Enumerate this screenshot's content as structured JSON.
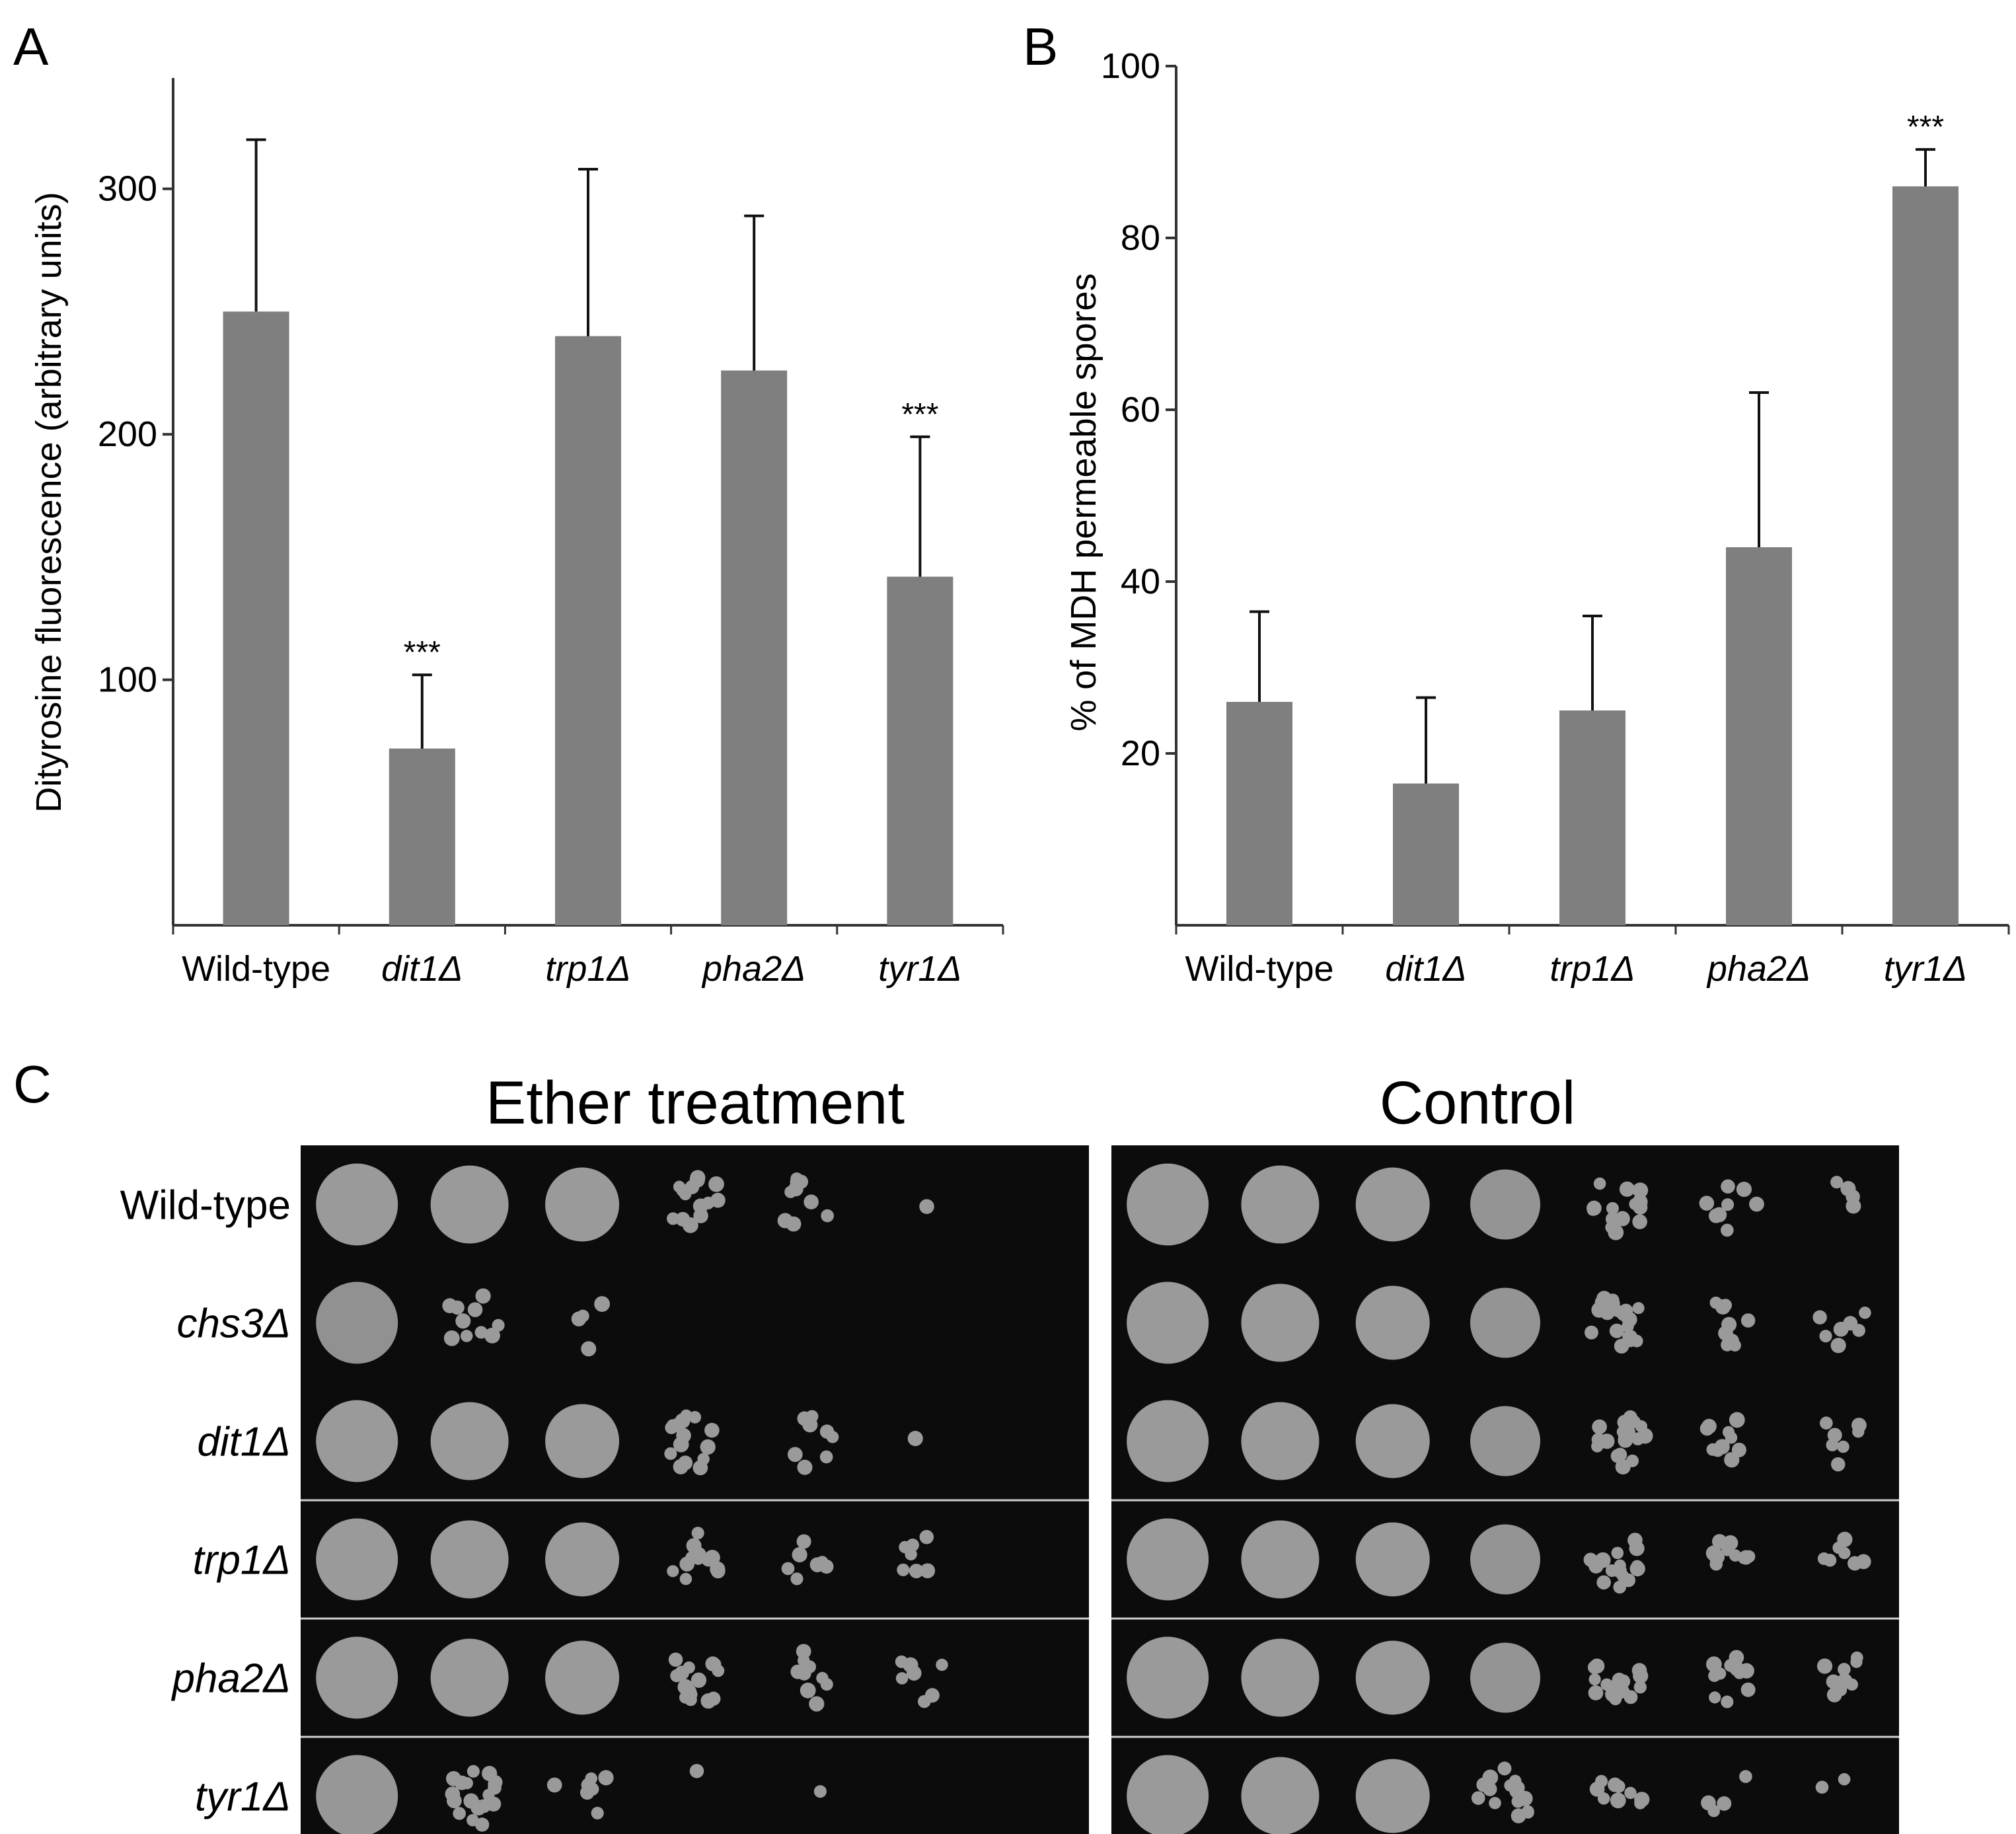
{
  "panel_labels": {
    "a": "A",
    "b": "B",
    "c": "C"
  },
  "colors": {
    "bar": "#7f7f7f",
    "axis": "#333333",
    "plate": "#0c0c0c",
    "colony": "#9a9a9a"
  },
  "chart_data": [
    {
      "type": "bar",
      "panel": "A",
      "ylabel": "Dityrosine fluorescence (arbitrary units)",
      "xlabel": "",
      "categories": [
        "Wild-type",
        "dit1Δ",
        "trp1Δ",
        "pha2Δ",
        "tyr1Δ"
      ],
      "italic_categories": [
        false,
        true,
        true,
        true,
        true
      ],
      "values": [
        250,
        72,
        240,
        226,
        142
      ],
      "errors": [
        70,
        30,
        68,
        63,
        57
      ],
      "significance": [
        "",
        "***",
        "",
        "",
        "***"
      ],
      "yticks": [
        100,
        200,
        300
      ],
      "ylim": [
        0,
        350
      ]
    },
    {
      "type": "bar",
      "panel": "B",
      "ylabel": "% of MDH permeable spores",
      "xlabel": "",
      "categories": [
        "Wild-type",
        "dit1Δ",
        "trp1Δ",
        "pha2Δ",
        "tyr1Δ"
      ],
      "italic_categories": [
        false,
        true,
        true,
        true,
        true
      ],
      "values": [
        26,
        16.5,
        25,
        44,
        86
      ],
      "errors": [
        10.5,
        10,
        11,
        18,
        4.3
      ],
      "significance": [
        "",
        "",
        "",
        "",
        "***"
      ],
      "yticks": [
        20,
        40,
        60,
        80,
        100
      ],
      "ylim": [
        0,
        100
      ]
    }
  ],
  "spot_assay": {
    "titles": [
      "Ether treatment",
      "Control"
    ],
    "strains": [
      "Wild-type",
      "chs3Δ",
      "dit1Δ",
      "trp1Δ",
      "pha2Δ",
      "tyr1Δ"
    ],
    "italic_strains": [
      false,
      true,
      true,
      true,
      true,
      true
    ],
    "growth": {
      "Ether treatment": [
        [
          1,
          1,
          1,
          0.7,
          0.4,
          0.05,
          0
        ],
        [
          0.85,
          0.45,
          0.2,
          0,
          0,
          0,
          0
        ],
        [
          1,
          1,
          1,
          0.7,
          0.35,
          0.05,
          0
        ],
        [
          1,
          1,
          1,
          0.6,
          0.3,
          0.3,
          0
        ],
        [
          1,
          1,
          1,
          0.7,
          0.4,
          0.3,
          0
        ],
        [
          0.95,
          0.8,
          0.3,
          0.05,
          0.05,
          0,
          0
        ]
      ],
      "Control": [
        [
          1,
          1,
          1,
          0.9,
          0.7,
          0.4,
          0.2
        ],
        [
          1,
          1,
          1,
          0.9,
          0.8,
          0.4,
          0.3
        ],
        [
          1,
          1,
          1,
          0.9,
          0.8,
          0.5,
          0.3
        ],
        [
          1,
          1,
          1,
          0.9,
          0.7,
          0.5,
          0.3
        ],
        [
          1,
          1,
          1,
          0.9,
          0.8,
          0.5,
          0.4
        ],
        [
          1,
          1,
          1,
          0.7,
          0.4,
          0.2,
          0.1
        ]
      ]
    }
  }
}
